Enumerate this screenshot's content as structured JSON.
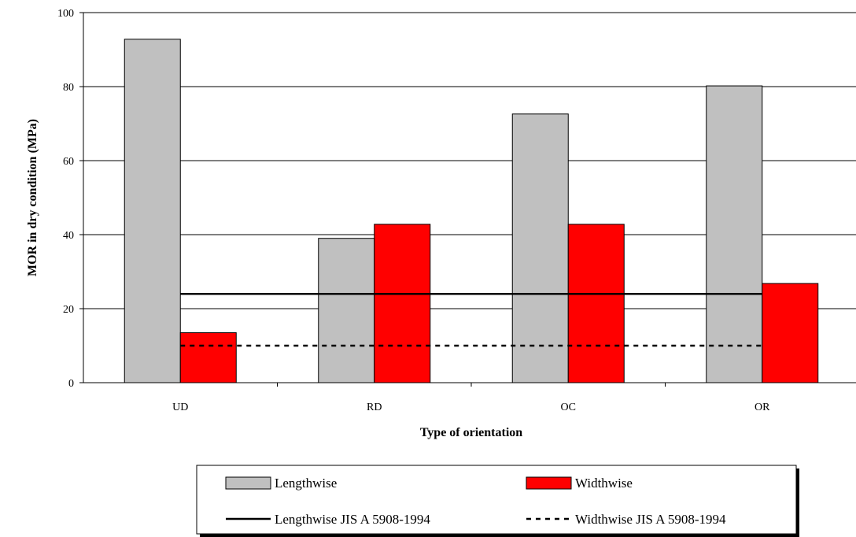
{
  "chart_data": {
    "type": "bar",
    "title": "",
    "xlabel": "Type of orientation",
    "ylabel": "MOR in dry condition (MPa)",
    "categories": [
      "UD",
      "RD",
      "OC",
      "OR"
    ],
    "ylim": [
      0,
      100
    ],
    "yticks": [
      0,
      20,
      40,
      60,
      80,
      100
    ],
    "grid": true,
    "legend_position": "bottom",
    "series": [
      {
        "name": "Lengthwise",
        "values": [
          92.8,
          39.0,
          72.6,
          80.2
        ],
        "color": "#c0c0c0"
      },
      {
        "name": "Widthwise",
        "values": [
          13.5,
          42.8,
          42.8,
          26.8
        ],
        "color": "#ff0000"
      }
    ],
    "reference_lines": [
      {
        "name": "Lengthwise JIS A 5908-1994",
        "value": 24,
        "style": "solid",
        "color": "#000000"
      },
      {
        "name": "Widthwise JIS A 5908-1994",
        "value": 10,
        "style": "dashed",
        "color": "#000000"
      }
    ]
  }
}
